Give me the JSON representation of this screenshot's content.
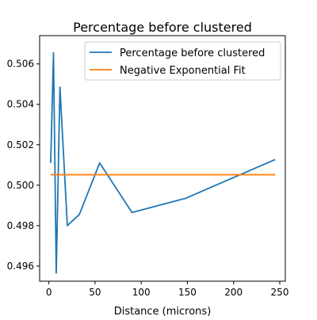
{
  "chart_data": {
    "type": "line",
    "title": "Percentage before clustered",
    "xlabel": "Distance (microns)",
    "ylabel": "",
    "xlim": [
      -10,
      256
    ],
    "ylim": [
      0.49525,
      0.5074
    ],
    "xticks": [
      0,
      50,
      100,
      150,
      200,
      250
    ],
    "yticks": [
      0.496,
      0.498,
      0.5,
      0.502,
      0.504,
      0.506
    ],
    "ytick_labels": [
      "0.496",
      "0.498",
      "0.500",
      "0.502",
      "0.504",
      "0.506"
    ],
    "grid": false,
    "legend_position": "top-right",
    "series": [
      {
        "name": "Percentage before clustered",
        "color": "#1f77b4",
        "x": [
          2,
          5,
          8,
          12,
          20,
          33,
          55,
          90,
          148,
          245
        ],
        "y": [
          0.5011,
          0.50655,
          0.49565,
          0.50485,
          0.498,
          0.49855,
          0.5011,
          0.49865,
          0.49935,
          0.50127
        ]
      },
      {
        "name": "Negative Exponential Fit",
        "color": "#ff7f0e",
        "x": [
          2,
          245
        ],
        "y": [
          0.50052,
          0.50052
        ]
      }
    ]
  }
}
